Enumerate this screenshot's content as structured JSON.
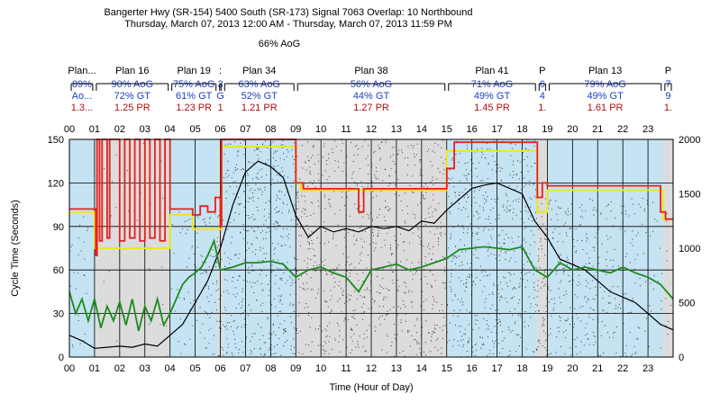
{
  "title": {
    "line1": "Bangerter Hwy (SR-154) 5400 South (SR-173) Signal 7063 Overlap: 10 Northbound",
    "line2": "Thursday, March 07, 2013 12:00 AM - Thursday, March 07, 2013 11:59 PM",
    "overall": "66% AoG"
  },
  "colors": {
    "plan_bg_light": "#c5e3f2",
    "plan_bg_gray": "#dcdcdc",
    "cycle_line": "#e8201a",
    "green_line": "#1e8a1e",
    "yellow_line": "#ece81c",
    "volume_line": "#000000",
    "scatter": "#000000",
    "aog_text": "#1f3fbf",
    "pr_text": "#b01010"
  },
  "chart_data": {
    "type": "line",
    "x_label": "Time (Hour of Day)",
    "y_label": "Cycle Time (Seconds)",
    "xlim": [
      0,
      24
    ],
    "ylim": [
      0,
      150
    ],
    "y2lim": [
      0,
      2000
    ],
    "x_ticks": [
      "00",
      "01",
      "02",
      "03",
      "04",
      "05",
      "06",
      "07",
      "08",
      "09",
      "10",
      "11",
      "12",
      "13",
      "14",
      "15",
      "16",
      "17",
      "18",
      "19",
      "20",
      "21",
      "22",
      "23"
    ],
    "y_ticks": [
      0,
      30,
      60,
      90,
      120,
      150
    ],
    "y2_ticks": [
      0,
      500,
      1000,
      1500,
      2000
    ],
    "plans": [
      {
        "name": "Plan...",
        "aog": "89%",
        "gt": "Ao...",
        "pr": "1.3...",
        "start": 0,
        "end": 1.0
      },
      {
        "name": "Plan 16",
        "aog": "90% AoG",
        "gt": "72% GT",
        "pr": "1.25 PR",
        "start": 1.0,
        "end": 4.0
      },
      {
        "name": "Plan 19",
        "aog": "75% AoG",
        "gt": "61% GT",
        "pr": "1.23 PR",
        "start": 4.0,
        "end": 5.9
      },
      {
        "name": ":",
        "aog": "3",
        "gt": "G",
        "pr": "1",
        "start": 5.9,
        "end": 6.1
      },
      {
        "name": "Plan 34",
        "aog": "63% AoG",
        "gt": "52% GT",
        "pr": "1.21 PR",
        "start": 6.1,
        "end": 9.0
      },
      {
        "name": "Plan 38",
        "aog": "56% AoG",
        "gt": "44% GT",
        "pr": "1.27 PR",
        "start": 9.0,
        "end": 15.0
      },
      {
        "name": "Plan 41",
        "aog": "71% AoG",
        "gt": "49% GT",
        "pr": "1.45 PR",
        "start": 15.0,
        "end": 18.6
      },
      {
        "name": "P",
        "aog": "6",
        "gt": "4",
        "pr": "1.",
        "start": 18.6,
        "end": 19.0
      },
      {
        "name": "Plan 13",
        "aog": "79% AoG",
        "gt": "49% GT",
        "pr": "1.61 PR",
        "start": 19.0,
        "end": 23.6
      },
      {
        "name": "P",
        "aog": "7",
        "gt": "9",
        "pr": "1.",
        "start": 23.6,
        "end": 24.0
      }
    ],
    "cycle_length": {
      "name": "Cycle Length",
      "x": [
        0,
        1.05,
        1.05,
        1.1,
        1.1,
        1.2,
        1.2,
        1.3,
        1.3,
        1.5,
        1.5,
        1.6,
        1.6,
        2.0,
        2.0,
        2.2,
        2.2,
        2.4,
        2.4,
        2.6,
        2.6,
        2.8,
        2.8,
        3.0,
        3.0,
        3.2,
        3.2,
        3.4,
        3.4,
        3.6,
        3.6,
        3.8,
        3.8,
        4.0,
        4.0,
        4.9,
        4.9,
        5.2,
        5.2,
        5.5,
        5.5,
        5.8,
        5.8,
        6.0,
        6.0,
        6.05,
        6.05,
        9.0,
        9.0,
        9.3,
        9.3,
        11.5,
        11.5,
        11.7,
        11.7,
        15.0,
        15.0,
        15.3,
        15.3,
        18.6,
        18.6,
        18.8,
        18.8,
        19.0,
        19.0,
        23.5,
        23.5,
        23.7,
        23.7,
        24.0
      ],
      "y": [
        102,
        102,
        70,
        70,
        150,
        150,
        80,
        80,
        150,
        150,
        82,
        82,
        150,
        150,
        80,
        80,
        150,
        150,
        82,
        82,
        150,
        150,
        80,
        80,
        150,
        150,
        82,
        82,
        150,
        150,
        80,
        80,
        150,
        150,
        102,
        102,
        98,
        98,
        104,
        104,
        100,
        100,
        110,
        110,
        90,
        90,
        150,
        150,
        120,
        120,
        116,
        116,
        100,
        100,
        116,
        116,
        130,
        130,
        148,
        148,
        110,
        110,
        120,
        120,
        118,
        118,
        100,
        100,
        95,
        95
      ]
    },
    "green_time": {
      "name": "Green Time",
      "x": [
        0,
        0.25,
        0.5,
        0.75,
        1.0,
        1.25,
        1.5,
        1.75,
        2.0,
        2.25,
        2.5,
        2.75,
        3.0,
        3.25,
        3.5,
        3.75,
        4.0,
        4.25,
        4.5,
        4.75,
        5.0,
        5.25,
        5.5,
        5.75,
        6.0,
        6.5,
        7.0,
        7.5,
        8.0,
        8.5,
        9.0,
        9.5,
        10.0,
        10.5,
        11.0,
        11.5,
        12.0,
        12.5,
        13.0,
        13.5,
        14.0,
        14.5,
        15.0,
        15.5,
        16.0,
        16.5,
        17.0,
        17.5,
        18.0,
        18.5,
        19.0,
        19.5,
        20.0,
        20.5,
        21.0,
        21.5,
        22.0,
        22.5,
        23.0,
        23.5,
        24.0
      ],
      "y": [
        45,
        30,
        40,
        25,
        40,
        20,
        35,
        25,
        38,
        22,
        40,
        18,
        35,
        25,
        40,
        22,
        30,
        40,
        50,
        55,
        58,
        62,
        70,
        80,
        60,
        62,
        65,
        65,
        66,
        64,
        55,
        60,
        62,
        58,
        55,
        45,
        60,
        62,
        64,
        60,
        62,
        65,
        68,
        74,
        75,
        76,
        75,
        74,
        76,
        60,
        55,
        65,
        60,
        62,
        60,
        58,
        62,
        58,
        55,
        50,
        40
      ]
    },
    "yellow_line": {
      "name": "Yellow",
      "x": [
        0,
        1.0,
        1.0,
        4.0,
        4.0,
        4.9,
        4.9,
        6.05,
        6.05,
        9.0,
        9.0,
        9.2,
        9.2,
        15.0,
        15.0,
        18.6,
        18.6,
        19.0,
        19.0,
        23.6,
        23.6,
        24.0
      ],
      "y": [
        100,
        100,
        75,
        75,
        98,
        98,
        88,
        88,
        145,
        145,
        120,
        120,
        115,
        115,
        142,
        142,
        100,
        100,
        115,
        115,
        95,
        95
      ]
    },
    "volume": {
      "name": "Volume (vph)",
      "x": [
        0,
        0.5,
        1.0,
        1.5,
        2.0,
        2.5,
        3.0,
        3.5,
        4.0,
        4.5,
        5.0,
        5.5,
        6.0,
        6.5,
        7.0,
        7.5,
        8.0,
        8.5,
        9.0,
        9.5,
        10.0,
        10.5,
        11.0,
        11.5,
        12.0,
        12.5,
        13.0,
        13.5,
        14.0,
        14.5,
        15.0,
        15.5,
        16.0,
        16.5,
        17.0,
        17.5,
        18.0,
        18.5,
        19.0,
        19.5,
        20.0,
        20.5,
        21.0,
        21.5,
        22.0,
        22.5,
        23.0,
        23.5,
        24.0
      ],
      "y": [
        200,
        150,
        80,
        90,
        100,
        90,
        120,
        100,
        200,
        300,
        500,
        700,
        1000,
        1400,
        1700,
        1800,
        1750,
        1650,
        1300,
        1100,
        1200,
        1150,
        1180,
        1150,
        1200,
        1180,
        1200,
        1160,
        1250,
        1230,
        1350,
        1450,
        1550,
        1580,
        1600,
        1550,
        1500,
        1250,
        1100,
        900,
        850,
        800,
        700,
        600,
        550,
        500,
        400,
        300,
        250
      ]
    }
  }
}
